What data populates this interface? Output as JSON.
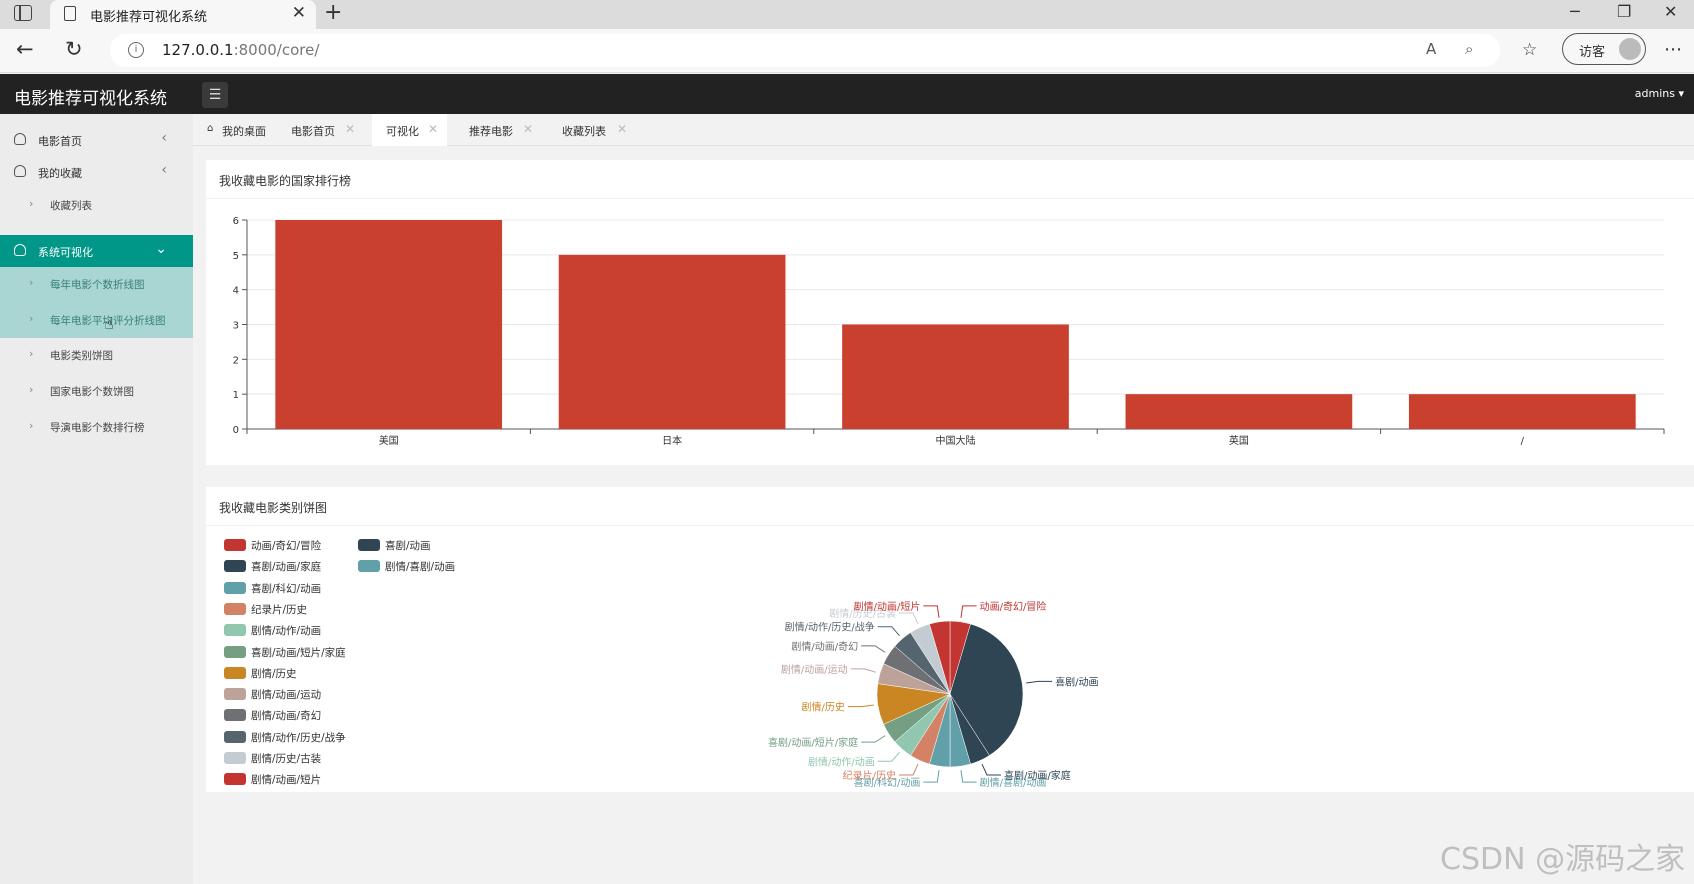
{
  "browser": {
    "tab_title": "电影推荐可视化系统",
    "url_host": "127.0.0.1",
    "url_rest": ":8000/core/",
    "guest_label": "访客"
  },
  "app": {
    "title": "电影推荐可视化系统",
    "user": "admins"
  },
  "sidebar": {
    "items": [
      {
        "label": "电影首页"
      },
      {
        "label": "我的收藏"
      },
      {
        "label": "收藏列表"
      },
      {
        "label": "系统可视化"
      },
      {
        "label": "每年电影个数折线图"
      },
      {
        "label": "每年电影平均评分折线图"
      },
      {
        "label": "电影类别饼图"
      },
      {
        "label": "国家电影个数饼图"
      },
      {
        "label": "导演电影个数排行榜"
      }
    ]
  },
  "tabs": [
    {
      "label": "我的桌面"
    },
    {
      "label": "电影首页"
    },
    {
      "label": "可视化"
    },
    {
      "label": "推荐电影"
    },
    {
      "label": "收藏列表"
    }
  ],
  "bar_card": {
    "title": "我收藏电影的国家排行榜"
  },
  "pie_card": {
    "title": "我收藏电影类别饼图"
  },
  "colors": {
    "bar": "#c9402f",
    "sidebar_active": "#009688",
    "pie_palette": [
      "#c23531",
      "#2f4554",
      "#2f4554",
      "#61a0a8",
      "#61a0a8",
      "#d48265",
      "#91c7ae",
      "#749f83",
      "#ca8622",
      "#bda29a",
      "#6e7074",
      "#546570",
      "#c4ccd3",
      "#c23531"
    ]
  },
  "chart_data": [
    {
      "type": "bar",
      "title": "我收藏电影的国家排行榜",
      "categories": [
        "美国",
        "日本",
        "中国大陆",
        "英国",
        "/"
      ],
      "values": [
        6,
        5,
        3,
        1,
        1
      ],
      "ylim": [
        0,
        6
      ],
      "yticks": [
        0,
        1,
        2,
        3,
        4,
        5,
        6
      ],
      "grid": true
    },
    {
      "type": "pie",
      "title": "我收藏电影类别饼图",
      "legend_position": "top-left",
      "labels": [
        "动画/奇幻/冒险",
        "喜剧/动画",
        "喜剧/动画/家庭",
        "剧情/喜剧/动画",
        "喜剧/科幻/动画",
        "纪录片/历史",
        "剧情/动作/动画",
        "喜剧/动画/短片/家庭",
        "剧情/历史",
        "剧情/动画/运动",
        "剧情/动画/奇幻",
        "剧情/动作/历史/战争",
        "剧情/历史/古装",
        "剧情/动画/短片"
      ],
      "values": [
        1,
        8,
        1,
        1,
        1,
        1,
        1,
        1,
        2,
        1,
        1,
        1,
        1,
        1
      ]
    }
  ],
  "watermark": "CSDN @源码之家"
}
